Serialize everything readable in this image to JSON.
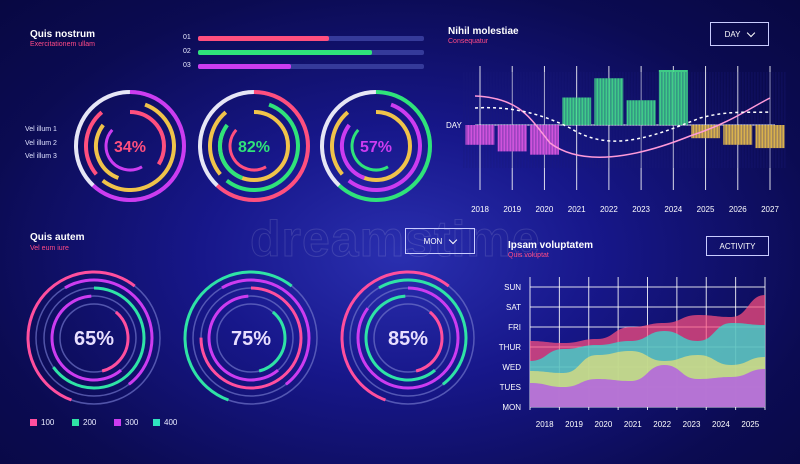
{
  "watermark": "dreamstime",
  "panel_top_left": {
    "title": "Quis nostrum",
    "subtitle": "Exercitationem ullam",
    "bars": [
      {
        "num": "01",
        "value": 0.58,
        "color": "#ff4f7e"
      },
      {
        "num": "02",
        "value": 0.77,
        "color": "#2fe37a"
      },
      {
        "num": "03",
        "value": 0.41,
        "color": "#cc3cf0"
      }
    ],
    "labels": [
      "Vel illum 1",
      "Vel illum 2",
      "Vel illum 3"
    ],
    "rings": [
      {
        "pct": "34%",
        "value": 0.34,
        "text_color": "#ff4f7e"
      },
      {
        "pct": "82%",
        "value": 0.82,
        "text_color": "#2fe37a"
      },
      {
        "pct": "57%",
        "value": 0.57,
        "text_color": "#cc3cf0"
      }
    ]
  },
  "panel_top_right": {
    "title": "Nihil molestiae",
    "subtitle": "Consequatur",
    "button": "DAY",
    "axis_label": "DAY"
  },
  "panel_bottom_left": {
    "title": "Quis autem",
    "subtitle": "Vel eum iure",
    "button": "MON",
    "rings": [
      {
        "pct": "65%",
        "value": 0.65
      },
      {
        "pct": "75%",
        "value": 0.75
      },
      {
        "pct": "85%",
        "value": 0.85
      }
    ],
    "legend": [
      {
        "label": "100",
        "color": "#ff4f9e"
      },
      {
        "label": "200",
        "color": "#2fe3a6"
      },
      {
        "label": "300",
        "color": "#cc3cf0"
      },
      {
        "label": "400",
        "color": "#2fe3c0"
      }
    ]
  },
  "panel_bottom_right": {
    "title": "Ipsam voluptatem",
    "subtitle": "Quis voluptat",
    "button": "ACTIVITY"
  },
  "chart_data": [
    {
      "type": "bar",
      "title": "Nihil molestiae",
      "ylabel": "DAY",
      "categories": [
        "2018",
        "2019",
        "2020",
        "2021",
        "2022",
        "2023",
        "2024",
        "2025",
        "2026",
        "2027"
      ],
      "series": [
        {
          "values": [
            -0.6,
            -0.8,
            -0.9,
            0.5,
            0.85,
            0.45,
            1.0,
            -0.4,
            -0.6,
            -0.7
          ]
        }
      ],
      "ylim": [
        -1,
        1.3
      ],
      "grid": true
    },
    {
      "type": "area",
      "title": "Ipsam voluptatem",
      "categories": [
        "2018",
        "2019",
        "2020",
        "2021",
        "2022",
        "2023",
        "2024",
        "2025"
      ],
      "y_ticks": [
        "MON",
        "TUES",
        "WED",
        "THUR",
        "FRI",
        "SAT",
        "SUN"
      ],
      "series": [
        {
          "color": "#ff4f7e",
          "values": [
            3.3,
            3.2,
            3.4,
            4.0,
            4.2,
            4.6,
            4.5,
            5.6
          ]
        },
        {
          "color": "#2fe3d3",
          "values": [
            2.3,
            2.9,
            3.1,
            3.3,
            3.8,
            3.3,
            4.2,
            4.1
          ]
        },
        {
          "color": "#e8e07a",
          "values": [
            1.8,
            1.7,
            2.6,
            2.8,
            2.3,
            2.6,
            2.1,
            2.5
          ]
        },
        {
          "color": "#b14df0",
          "values": [
            1.2,
            1.0,
            1.4,
            1.3,
            2.1,
            1.4,
            1.5,
            1.9
          ]
        }
      ],
      "grid": true
    }
  ]
}
